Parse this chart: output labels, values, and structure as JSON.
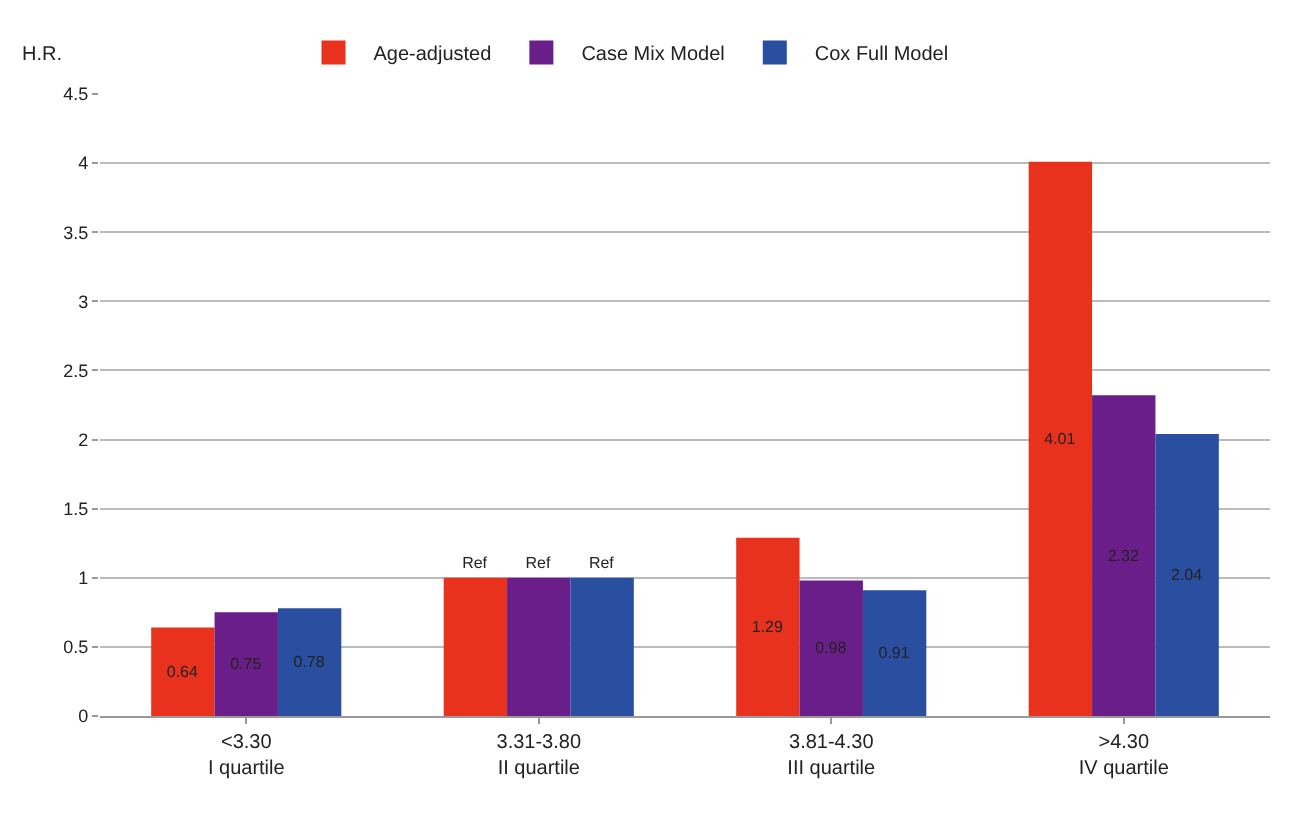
{
  "chart_data": {
    "type": "bar",
    "ylabel": "H.R.",
    "categories": [
      "<3.30\nI quartile",
      "3.31-3.80\nII quartile",
      "3.81-4.30\nIII quartile",
      ">4.30\nIV quartile"
    ],
    "series": [
      {
        "name": "Age-adjusted",
        "color": "#e8321e",
        "values": [
          0.64,
          1,
          1.29,
          4.01
        ],
        "value_labels": [
          "0.64",
          "Ref",
          "1.29",
          "4.01"
        ]
      },
      {
        "name": "Case Mix Model",
        "color": "#6a1e8a",
        "values": [
          0.75,
          1,
          0.98,
          2.32
        ],
        "value_labels": [
          "0.75",
          "Ref",
          "0.98",
          "2.32"
        ]
      },
      {
        "name": "Cox Full Model",
        "color": "#2a4ea0",
        "values": [
          0.78,
          1,
          0.91,
          2.04
        ],
        "value_labels": [
          "0.78",
          "Ref",
          "0.91",
          "2.04"
        ]
      }
    ],
    "ylim": [
      0,
      4.5
    ],
    "yticks": [
      0,
      0.5,
      1,
      1.5,
      2,
      2.5,
      3,
      3.5,
      4,
      4.5
    ],
    "grid": "y",
    "legend": "top"
  }
}
